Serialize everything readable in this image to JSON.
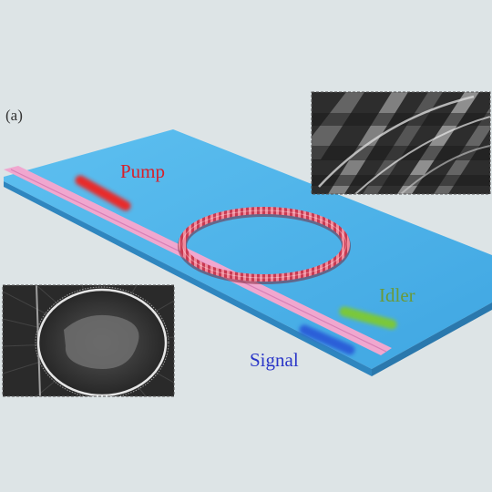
{
  "panel_label": "(a)",
  "labels": {
    "pump": "Pump",
    "idler": "Idler",
    "signal": "Signal"
  },
  "colors": {
    "background": "#dde4e6",
    "substrate": "#4fb3ea",
    "waveguide": "#f0a7cf",
    "ring": "#e05a6e",
    "pump": "#e82a2a",
    "idler": "#7ac83a",
    "signal": "#2a5fd8",
    "pump_text": "#d81f2a",
    "idler_text": "#6a9a3a",
    "signal_text": "#2a36c8"
  },
  "insets": [
    {
      "name": "sem-grating-closeup"
    },
    {
      "name": "sem-ring-overview"
    }
  ]
}
